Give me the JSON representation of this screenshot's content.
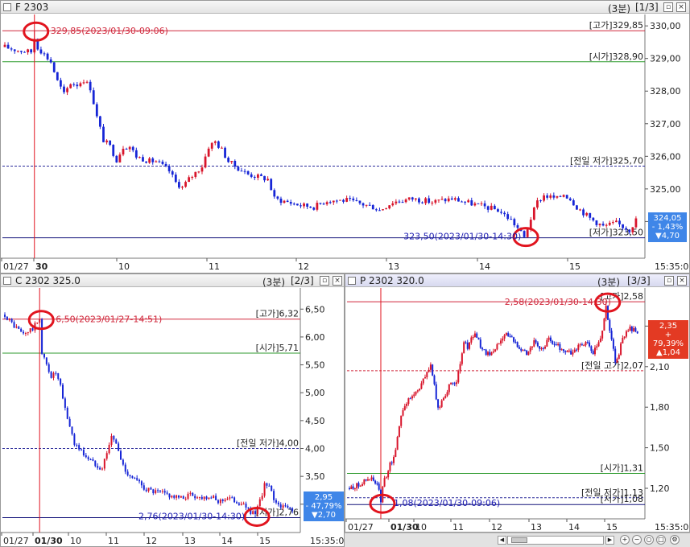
{
  "colors": {
    "up": "#d8152b",
    "down": "#1625d6",
    "high": "#d0283c",
    "open": "#2c9a2c",
    "prev": "#2a2a9a",
    "low": "#12127a",
    "annot": "#e1141e",
    "badge_down": "#3f86e8",
    "badge_up": "#e33a23"
  },
  "panels": [
    {
      "id": "top",
      "title": "F 2303",
      "interval": "(3분)",
      "page": "[1/3]",
      "badge": {
        "price": "324,05",
        "pct": "- 1,43%",
        "chg": "▼4,70",
        "color": "#3f86e8"
      },
      "right_time": "15:35:00",
      "high_note": "329,85(2023/01/30-09:06)",
      "low_note": "323,50(2023/01/30-14:30)",
      "x_ticks": [
        "01/27",
        "30",
        "10",
        "11",
        "12",
        "13",
        "14",
        "15"
      ]
    },
    {
      "id": "c",
      "title": "C 2302 325.0",
      "interval": "(3분)",
      "page": "[2/3]",
      "badge": {
        "price": "2,95",
        "pct": "- 47,79%",
        "chg": "▼2,70",
        "color": "#3f86e8"
      },
      "right_time": "15:35:00",
      "high_note": "6,50(2023/01/27-14:51)",
      "low_note": "2,76(2023/01/30-14:30)",
      "x_ticks": [
        "01/27",
        "01/30",
        "10",
        "11",
        "12",
        "13",
        "14",
        "15"
      ]
    },
    {
      "id": "p",
      "title": "P 2302 320.0",
      "interval": "(3분)",
      "page": "[3/3]",
      "badge": {
        "price": "2,35",
        "pct": "+ 79,39%",
        "chg": "▲1,04",
        "color": "#e33a23"
      },
      "right_time": "15:35:00",
      "high_note": "2,58(2023/01/30-14:30)",
      "low_note": "1,08(2023/01/30-09:06)",
      "x_ticks": [
        "01/27",
        "01/30",
        "10",
        "11",
        "12",
        "13",
        "14",
        "15"
      ]
    }
  ],
  "chart_data": [
    {
      "type": "candlestick",
      "title": "F 2303",
      "x_labels": [
        "01/27",
        "30",
        "10",
        "11",
        "12",
        "13",
        "14",
        "15"
      ],
      "ylim": [
        322.9,
        330.3
      ],
      "y_ticks": [
        "330,00",
        "329,00",
        "328,00",
        "327,00",
        "326,00",
        "325,00",
        "324,00"
      ],
      "reference_lines": [
        {
          "label": "[고가]329,85",
          "value": 329.85,
          "kind": "high"
        },
        {
          "label": "[시가]328,90",
          "value": 328.9,
          "kind": "open"
        },
        {
          "label": "[전일 저가]325,70",
          "value": 325.7,
          "kind": "prev"
        },
        {
          "label": "[저가]323,50",
          "value": 323.5,
          "kind": "low"
        }
      ],
      "vline_index": 9,
      "high_index": 9,
      "low_index": 158,
      "path": [
        [
          0,
          329.35
        ],
        [
          4,
          329.25
        ],
        [
          8,
          329.2
        ],
        [
          9,
          329.6
        ],
        [
          10,
          329.35
        ],
        [
          14,
          328.9
        ],
        [
          16,
          328.3
        ],
        [
          18,
          327.9
        ],
        [
          20,
          328.25
        ],
        [
          22,
          328.2
        ],
        [
          24,
          328.35
        ],
        [
          26,
          328.1
        ],
        [
          28,
          327.2
        ],
        [
          30,
          326.5
        ],
        [
          32,
          326.3
        ],
        [
          34,
          325.9
        ],
        [
          36,
          326.3
        ],
        [
          38,
          326.3
        ],
        [
          40,
          326.0
        ],
        [
          44,
          325.85
        ],
        [
          46,
          325.85
        ],
        [
          50,
          325.55
        ],
        [
          52,
          325.2
        ],
        [
          54,
          325.05
        ],
        [
          56,
          325.3
        ],
        [
          60,
          325.7
        ],
        [
          62,
          326.3
        ],
        [
          64,
          326.45
        ],
        [
          66,
          326.2
        ],
        [
          68,
          325.85
        ],
        [
          70,
          325.7
        ],
        [
          74,
          325.45
        ],
        [
          78,
          325.35
        ],
        [
          80,
          325.3
        ],
        [
          82,
          324.7
        ],
        [
          86,
          324.6
        ],
        [
          90,
          324.5
        ],
        [
          94,
          324.45
        ],
        [
          98,
          324.65
        ],
        [
          104,
          324.65
        ],
        [
          108,
          324.55
        ],
        [
          112,
          324.45
        ],
        [
          114,
          324.35
        ],
        [
          118,
          324.6
        ],
        [
          124,
          324.7
        ],
        [
          130,
          324.6
        ],
        [
          136,
          324.7
        ],
        [
          140,
          324.6
        ],
        [
          146,
          324.45
        ],
        [
          150,
          324.35
        ],
        [
          154,
          324.05
        ],
        [
          156,
          323.8
        ],
        [
          158,
          323.5
        ],
        [
          160,
          324.1
        ],
        [
          162,
          324.6
        ],
        [
          164,
          324.8
        ],
        [
          168,
          324.7
        ],
        [
          170,
          324.85
        ],
        [
          172,
          324.7
        ],
        [
          174,
          324.45
        ],
        [
          178,
          324.1
        ],
        [
          182,
          323.85
        ],
        [
          186,
          323.95
        ],
        [
          190,
          323.75
        ],
        [
          192,
          324.05
        ]
      ],
      "last": {
        "price": 324.05,
        "change_pct": -1.43,
        "change": -4.7
      }
    },
    {
      "type": "candlestick",
      "title": "C 2302 325.0",
      "x_labels": [
        "01/27",
        "01/30",
        "10",
        "11",
        "12",
        "13",
        "14",
        "15"
      ],
      "ylim": [
        2.55,
        6.85
      ],
      "y_ticks": [
        "6,50",
        "6,00",
        "5,50",
        "5,00",
        "4,50",
        "4,00",
        "3,50",
        "3,00"
      ],
      "reference_lines": [
        {
          "label": "[고가]6,32",
          "value": 6.32,
          "kind": "high"
        },
        {
          "label": "[시가]5,71",
          "value": 5.71,
          "kind": "open"
        },
        {
          "label": "[전일 저가]4,00",
          "value": 4.0,
          "kind": "prev"
        },
        {
          "label": "[저가]2,76",
          "value": 2.76,
          "kind": "low"
        }
      ],
      "vline_index": 15,
      "high_index": 15,
      "low_index": 108,
      "path": [
        [
          0,
          6.4
        ],
        [
          4,
          6.2
        ],
        [
          8,
          6.05
        ],
        [
          12,
          6.15
        ],
        [
          15,
          6.32
        ],
        [
          16,
          5.7
        ],
        [
          18,
          5.5
        ],
        [
          20,
          5.3
        ],
        [
          22,
          5.35
        ],
        [
          24,
          5.1
        ],
        [
          26,
          4.7
        ],
        [
          28,
          4.4
        ],
        [
          30,
          4.1
        ],
        [
          34,
          3.9
        ],
        [
          38,
          3.75
        ],
        [
          42,
          3.65
        ],
        [
          44,
          3.95
        ],
        [
          46,
          4.2
        ],
        [
          48,
          4.1
        ],
        [
          50,
          3.8
        ],
        [
          52,
          3.6
        ],
        [
          56,
          3.45
        ],
        [
          60,
          3.3
        ],
        [
          64,
          3.22
        ],
        [
          68,
          3.2
        ],
        [
          72,
          3.15
        ],
        [
          76,
          3.1
        ],
        [
          80,
          3.18
        ],
        [
          84,
          3.12
        ],
        [
          88,
          3.15
        ],
        [
          92,
          3.05
        ],
        [
          96,
          3.12
        ],
        [
          100,
          3.05
        ],
        [
          104,
          2.95
        ],
        [
          108,
          2.8
        ],
        [
          110,
          3.05
        ],
        [
          112,
          3.35
        ],
        [
          114,
          3.3
        ],
        [
          116,
          3.1
        ],
        [
          118,
          3.0
        ],
        [
          120,
          2.95
        ],
        [
          124,
          2.92
        ]
      ],
      "last": {
        "price": 2.95,
        "change_pct": -47.79,
        "change": -2.7
      }
    },
    {
      "type": "candlestick",
      "title": "P 2302 320.0",
      "x_labels": [
        "01/27",
        "01/30",
        "10",
        "11",
        "12",
        "13",
        "14",
        "15"
      ],
      "ylim": [
        0.98,
        2.67
      ],
      "y_ticks": [
        "2,40",
        "2,10",
        "1,80",
        "1,50",
        "1,20"
      ],
      "reference_lines": [
        {
          "label": "[고가]2,58",
          "value": 2.58,
          "kind": "high"
        },
        {
          "label": "[전일 고가]2,07",
          "value": 2.07,
          "kind": "prev"
        },
        {
          "label": "[시가]1,31",
          "value": 1.31,
          "kind": "open"
        },
        {
          "label": "[전일 저가]1,13",
          "value": 1.13,
          "kind": "prev"
        },
        {
          "label": "[저가]1,08",
          "value": 1.08,
          "kind": "low"
        }
      ],
      "vline_index": 17,
      "high_index": 139,
      "low_index": 17,
      "path": [
        [
          0,
          1.2
        ],
        [
          4,
          1.22
        ],
        [
          8,
          1.25
        ],
        [
          12,
          1.27
        ],
        [
          16,
          1.2
        ],
        [
          17,
          1.08
        ],
        [
          18,
          1.22
        ],
        [
          20,
          1.3
        ],
        [
          22,
          1.38
        ],
        [
          24,
          1.42
        ],
        [
          26,
          1.58
        ],
        [
          28,
          1.75
        ],
        [
          30,
          1.82
        ],
        [
          34,
          1.88
        ],
        [
          38,
          1.95
        ],
        [
          42,
          2.05
        ],
        [
          44,
          2.12
        ],
        [
          46,
          1.95
        ],
        [
          48,
          1.78
        ],
        [
          50,
          1.85
        ],
        [
          54,
          1.95
        ],
        [
          58,
          2.0
        ],
        [
          60,
          2.1
        ],
        [
          62,
          2.28
        ],
        [
          64,
          2.25
        ],
        [
          66,
          2.3
        ],
        [
          68,
          2.35
        ],
        [
          72,
          2.22
        ],
        [
          76,
          2.18
        ],
        [
          80,
          2.25
        ],
        [
          84,
          2.35
        ],
        [
          88,
          2.3
        ],
        [
          92,
          2.25
        ],
        [
          96,
          2.2
        ],
        [
          100,
          2.28
        ],
        [
          104,
          2.22
        ],
        [
          108,
          2.3
        ],
        [
          112,
          2.26
        ],
        [
          116,
          2.22
        ],
        [
          120,
          2.2
        ],
        [
          124,
          2.25
        ],
        [
          128,
          2.28
        ],
        [
          132,
          2.2
        ],
        [
          136,
          2.3
        ],
        [
          139,
          2.55
        ],
        [
          140,
          2.45
        ],
        [
          142,
          2.3
        ],
        [
          144,
          2.15
        ],
        [
          146,
          2.2
        ],
        [
          148,
          2.32
        ],
        [
          152,
          2.38
        ],
        [
          156,
          2.35
        ]
      ],
      "last": {
        "price": 2.35,
        "change_pct": 79.39,
        "change": 1.04
      }
    }
  ]
}
